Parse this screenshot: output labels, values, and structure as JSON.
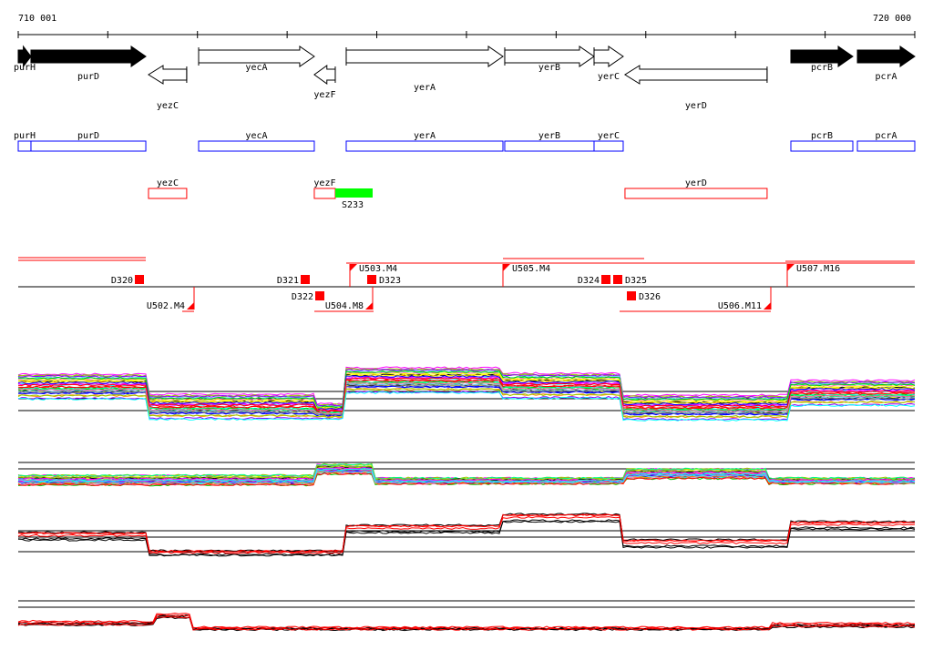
{
  "axis": {
    "start_label": "710 001",
    "end_label": "720 000",
    "start": 710001,
    "end": 720000,
    "tick_step": 1000
  },
  "genes": [
    {
      "name": "purH",
      "start": 710001,
      "end": 710143,
      "strand": "+",
      "filled": true
    },
    {
      "name": "purD",
      "start": 710143,
      "end": 711424,
      "strand": "+",
      "filled": true
    },
    {
      "name": "yezC",
      "start": 711454,
      "end": 711880,
      "strand": "-",
      "filled": false
    },
    {
      "name": "yecA",
      "start": 712013,
      "end": 713303,
      "strand": "+",
      "filled": false
    },
    {
      "name": "yezF",
      "start": 713303,
      "end": 713537,
      "strand": "-",
      "filled": false
    },
    {
      "name": "yerA",
      "start": 713659,
      "end": 715407,
      "strand": "+",
      "filled": false
    },
    {
      "name": "yerB",
      "start": 715427,
      "end": 716423,
      "strand": "+",
      "filled": false
    },
    {
      "name": "yerC",
      "start": 716423,
      "end": 716748,
      "strand": "+",
      "filled": false
    },
    {
      "name": "yerD",
      "start": 716768,
      "end": 718353,
      "strand": "-",
      "filled": false
    },
    {
      "name": "pcrB",
      "start": 718618,
      "end": 719309,
      "strand": "+",
      "filled": true
    },
    {
      "name": "pcrA",
      "start": 719360,
      "end": 720000,
      "strand": "+",
      "filled": true
    }
  ],
  "feature": {
    "name": "S233",
    "start": 713537,
    "end": 713953,
    "color": "#00ff00"
  },
  "regulatory": {
    "down": [
      "D320",
      "D321",
      "D322",
      "D323",
      "D324",
      "D325",
      "D326"
    ],
    "up": [
      "U502.M4",
      "U503.M4",
      "U504.M8",
      "U505.M4",
      "U506.M11",
      "U507.M16"
    ]
  },
  "colors": {
    "forward_box": "#0000ff",
    "reverse_box": "#ff0000",
    "regulatory": "#ff0000"
  }
}
